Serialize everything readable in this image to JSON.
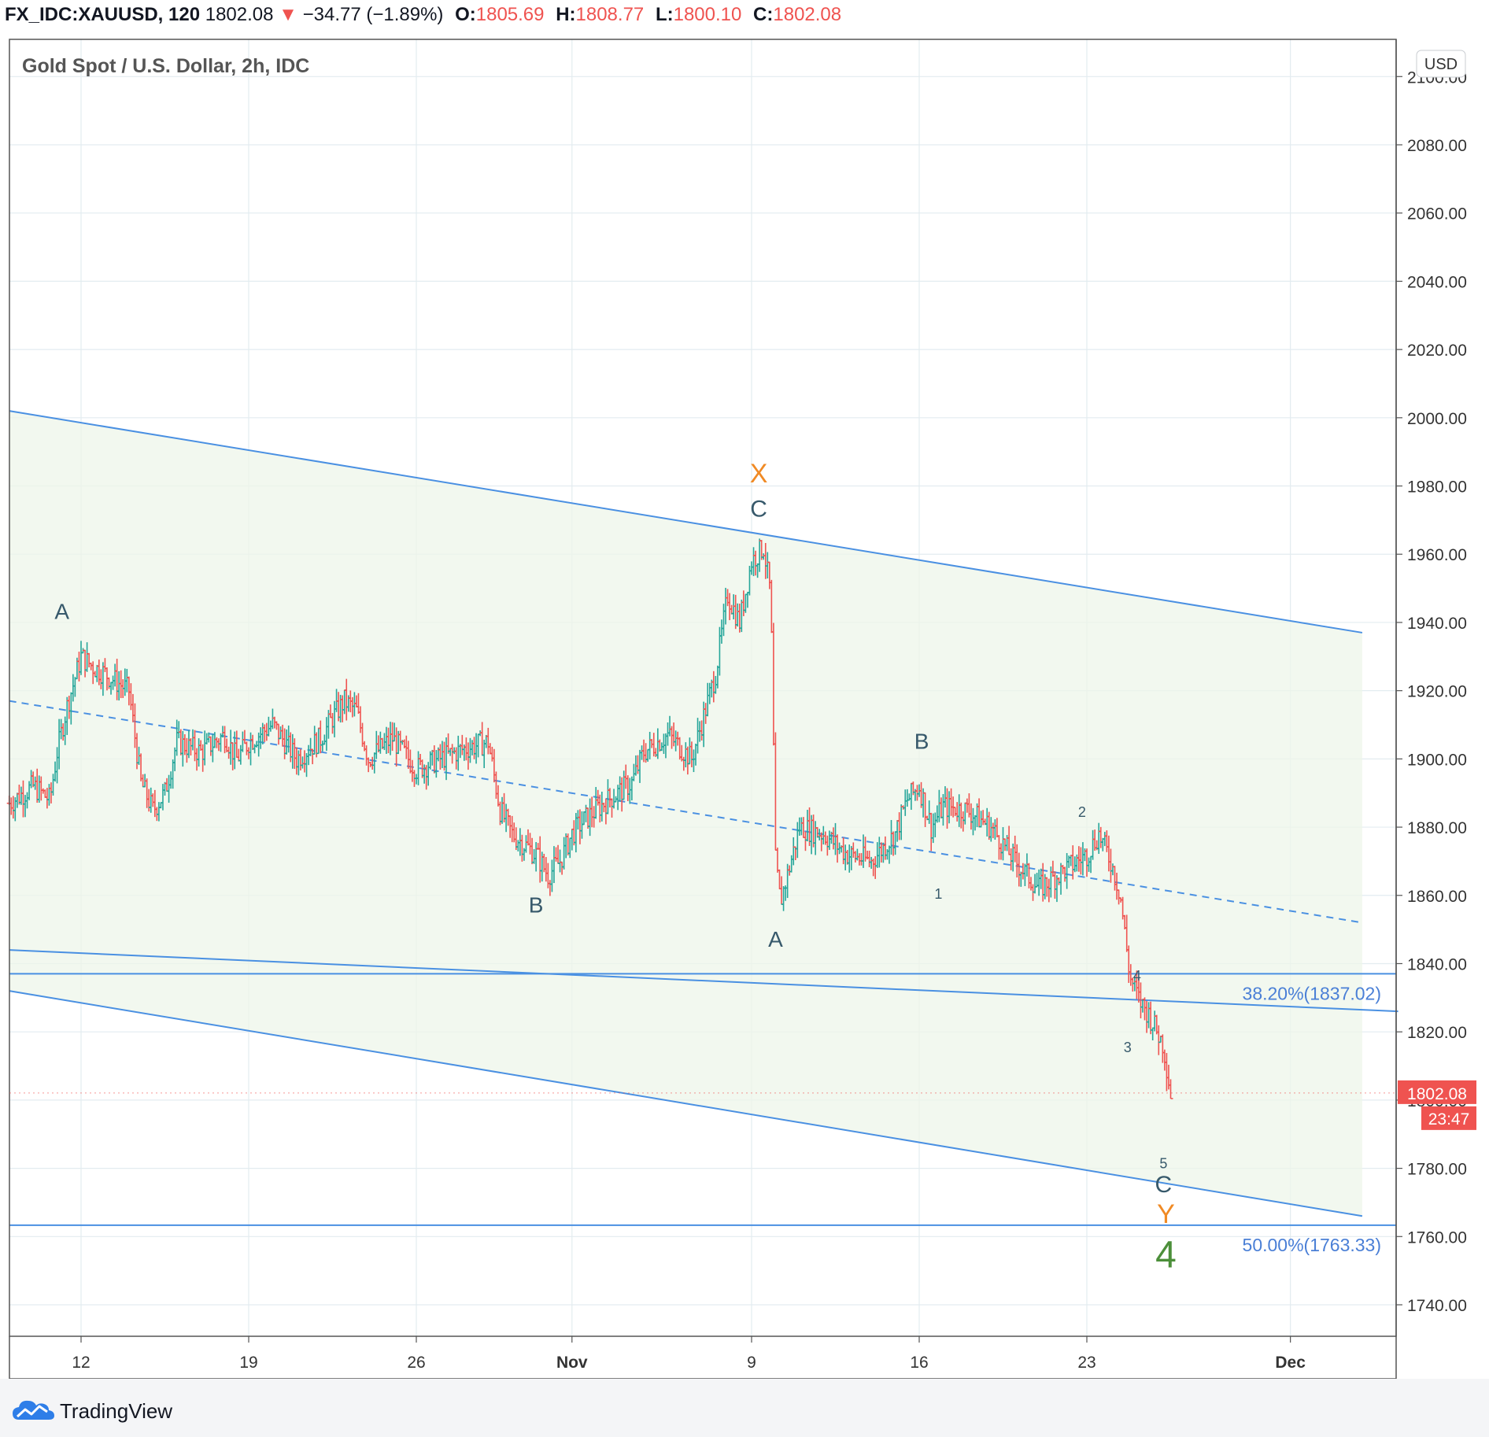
{
  "header": {
    "symbol": "FX_IDC:XAUUSD, 120",
    "last": "1802.08",
    "down_arrow": "▼",
    "change": "−34.77 (−1.89%)",
    "open_label": "O:",
    "open": "1805.69",
    "high_label": "H:",
    "high": "1808.77",
    "low_label": "L:",
    "low": "1800.10",
    "close_label": "C:",
    "close": "1802.08"
  },
  "brand": {
    "name": "TradingView"
  },
  "colors": {
    "up": "#26a69a",
    "down": "#ef5350",
    "line": "#4a90e2",
    "fill": "#eef6ea",
    "grid": "#e3ecf0",
    "wave_dark": "#37596b",
    "wave_orange": "#f08a24",
    "wave_green": "#4c8f3a"
  },
  "chart_data": {
    "type": "ohlc",
    "title": "Gold Spot / U.S. Dollar, 2h, IDC",
    "currency": "USD",
    "ylim": [
      1730,
      2110
    ],
    "y_ticks": [
      1740,
      1760,
      1780,
      1800,
      1820,
      1840,
      1860,
      1880,
      1900,
      1920,
      1940,
      1960,
      1980,
      2000,
      2020,
      2040,
      2060,
      2080,
      2100
    ],
    "y_tick_labels": [
      "1740.00",
      "1760.00",
      "1780.00",
      "1800.00",
      "1820.00",
      "1840.00",
      "1860.00",
      "1880.00",
      "1900.00",
      "1920.00",
      "1940.00",
      "1960.00",
      "1980.00",
      "2000.00",
      "2020.00",
      "2040.00",
      "2060.00",
      "2080.00",
      "2100.00"
    ],
    "x_range": [
      -3,
      55
    ],
    "x_ticks": [
      {
        "day": 0,
        "label": "12"
      },
      {
        "day": 7,
        "label": "19"
      },
      {
        "day": 14,
        "label": "26"
      },
      {
        "day": 20.5,
        "label": "Nov"
      },
      {
        "day": 28,
        "label": "9"
      },
      {
        "day": 35,
        "label": "16"
      },
      {
        "day": 42,
        "label": "23"
      },
      {
        "day": 50.5,
        "label": "Dec"
      }
    ],
    "price_path": [
      [
        -3,
        1887
      ],
      [
        -2,
        1892
      ],
      [
        -1.3,
        1888
      ],
      [
        -1,
        1902
      ],
      [
        -0.6,
        1915
      ],
      [
        0,
        1930
      ],
      [
        0.5,
        1927
      ],
      [
        1,
        1925
      ],
      [
        2,
        1920
      ],
      [
        2.5,
        1893
      ],
      [
        3,
        1885
      ],
      [
        3.5,
        1890
      ],
      [
        4,
        1905
      ],
      [
        5,
        1902
      ],
      [
        6,
        1907
      ],
      [
        6.5,
        1900
      ],
      [
        7,
        1905
      ],
      [
        8,
        1910
      ],
      [
        9,
        1900
      ],
      [
        10,
        1906
      ],
      [
        10.5,
        1912
      ],
      [
        11,
        1917
      ],
      [
        11.5,
        1914
      ],
      [
        12,
        1900
      ],
      [
        13,
        1906
      ],
      [
        14,
        1897
      ],
      [
        15,
        1900
      ],
      [
        16,
        1903
      ],
      [
        17,
        1905
      ],
      [
        17.5,
        1885
      ],
      [
        18,
        1878
      ],
      [
        19,
        1872
      ],
      [
        19.5,
        1866
      ],
      [
        20,
        1870
      ],
      [
        20.5,
        1878
      ],
      [
        21,
        1882
      ],
      [
        22,
        1888
      ],
      [
        23,
        1893
      ],
      [
        23.5,
        1902
      ],
      [
        24.5,
        1907
      ],
      [
        25.5,
        1900
      ],
      [
        26.5,
        1925
      ],
      [
        27,
        1948
      ],
      [
        27.5,
        1940
      ],
      [
        28,
        1958
      ],
      [
        28.5,
        1962
      ],
      [
        28.8,
        1948
      ],
      [
        29,
        1870
      ],
      [
        29.2,
        1858
      ],
      [
        29.5,
        1866
      ],
      [
        30,
        1880
      ],
      [
        31,
        1878
      ],
      [
        32,
        1872
      ],
      [
        33,
        1870
      ],
      [
        34,
        1878
      ],
      [
        34.5,
        1888
      ],
      [
        35,
        1892
      ],
      [
        35.5,
        1880
      ],
      [
        36,
        1886
      ],
      [
        37,
        1885
      ],
      [
        38,
        1880
      ],
      [
        39,
        1870
      ],
      [
        40,
        1862
      ],
      [
        41,
        1867
      ],
      [
        42,
        1872
      ],
      [
        42.5,
        1878
      ],
      [
        43,
        1870
      ],
      [
        43.4,
        1860
      ],
      [
        43.8,
        1836
      ],
      [
        44.2,
        1829
      ],
      [
        44.6,
        1825
      ],
      [
        45.2,
        1816
      ],
      [
        45.5,
        1802
      ]
    ],
    "channel_upper": {
      "from": [
        -3,
        2002
      ],
      "to": [
        53.5,
        1937
      ]
    },
    "channel_mid": {
      "from": [
        -3,
        1917
      ],
      "to": [
        53.5,
        1852
      ]
    },
    "channel_lower": {
      "from": [
        -3,
        1832
      ],
      "to": [
        53.5,
        1766
      ]
    },
    "channel_lower_extra": {
      "from": [
        -3,
        1844
      ],
      "to": [
        55,
        1826
      ]
    },
    "fib_levels": [
      {
        "price": 1837.02,
        "label": "38.20%(1837.02)"
      },
      {
        "price": 1763.33,
        "label": "50.00%(1763.33)"
      }
    ],
    "last_price": {
      "value": "1802.08",
      "countdown": "23:47",
      "price": 1802.08
    },
    "wave_labels": [
      {
        "text": "A",
        "day": -0.8,
        "price": 1941,
        "color": "wave_dark",
        "size": 28
      },
      {
        "text": "X",
        "day": 28.3,
        "price": 1981,
        "color": "wave_orange",
        "size": 34
      },
      {
        "text": "C",
        "day": 28.3,
        "price": 1971,
        "color": "wave_dark",
        "size": 30
      },
      {
        "text": "B",
        "day": 19.0,
        "price": 1855,
        "color": "wave_dark",
        "size": 28
      },
      {
        "text": "A",
        "day": 29.0,
        "price": 1845,
        "color": "wave_dark",
        "size": 28
      },
      {
        "text": "B",
        "day": 35.1,
        "price": 1903,
        "color": "wave_dark",
        "size": 28
      },
      {
        "text": "1",
        "day": 35.8,
        "price": 1859,
        "color": "wave_dark",
        "size": 18
      },
      {
        "text": "2",
        "day": 41.8,
        "price": 1883,
        "color": "wave_dark",
        "size": 18
      },
      {
        "text": "4",
        "day": 44.1,
        "price": 1835,
        "color": "wave_dark",
        "size": 18
      },
      {
        "text": "3",
        "day": 43.7,
        "price": 1814,
        "color": "wave_dark",
        "size": 18
      },
      {
        "text": "5",
        "day": 45.2,
        "price": 1780,
        "color": "wave_dark",
        "size": 18
      },
      {
        "text": "C",
        "day": 45.2,
        "price": 1773,
        "color": "wave_dark",
        "size": 30
      },
      {
        "text": "Y",
        "day": 45.3,
        "price": 1764,
        "color": "wave_orange",
        "size": 34
      },
      {
        "text": "4",
        "day": 45.3,
        "price": 1751,
        "color": "wave_green",
        "size": 48
      }
    ]
  }
}
